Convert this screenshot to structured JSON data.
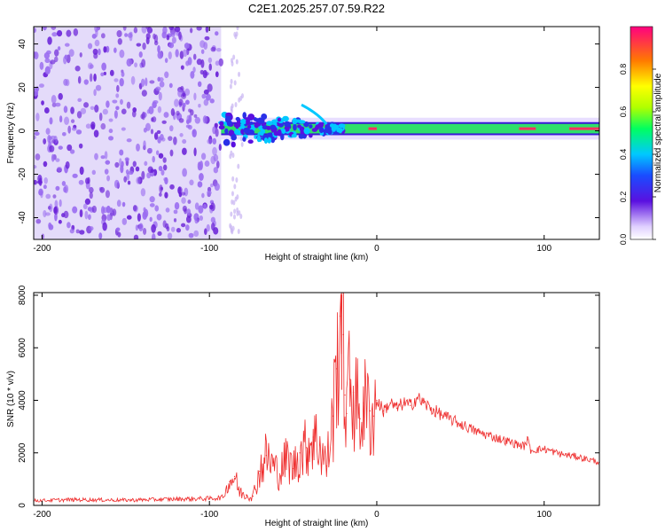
{
  "title": "C2E1.2025.257.07.59.R22",
  "colors": {
    "background": "#ffffff",
    "axis": "#000000",
    "snr_line": "#ee2a2a",
    "spec_bg": "#cdbdf5",
    "spec_dot": "#6a22d8",
    "spec_band": "#2fdf6a"
  },
  "chart_data": [
    {
      "type": "heatmap",
      "title": "C2E1.2025.257.07.59.R22",
      "xlabel": "Height of straight line (km)",
      "ylabel": "Frequency (Hz)",
      "xlim": [
        -205,
        133
      ],
      "ylim": [
        -50,
        48
      ],
      "x_ticks": [
        -200,
        -100,
        0,
        100
      ],
      "x_tick_labels": [
        "-200",
        "-100",
        "0",
        "100"
      ],
      "y_ticks": [
        -40,
        -20,
        0,
        20,
        40
      ],
      "y_tick_labels": [
        "-40",
        "-20",
        "0",
        "20",
        "40"
      ],
      "noise_region_km": [
        -205,
        -93
      ],
      "band_center_hz": 1,
      "band_halfwidth_hz": 3,
      "band_start_km": -93,
      "colorbar": {
        "label": "Normalized spectral amplitude",
        "range": [
          0.0,
          1.0
        ],
        "ticks": [
          0.0,
          0.2,
          0.4,
          0.6,
          0.8
        ],
        "tick_labels": [
          "0.0",
          "0.2",
          "0.4",
          "0.6",
          "0.8"
        ],
        "stops": [
          {
            "v": 0.0,
            "color": "#ffffff"
          },
          {
            "v": 0.06,
            "color": "#e0d0ff"
          },
          {
            "v": 0.18,
            "color": "#5a10e0"
          },
          {
            "v": 0.3,
            "color": "#1a4cff"
          },
          {
            "v": 0.4,
            "color": "#00c8ff"
          },
          {
            "v": 0.52,
            "color": "#00ff60"
          },
          {
            "v": 0.62,
            "color": "#b0ff00"
          },
          {
            "v": 0.72,
            "color": "#ffff00"
          },
          {
            "v": 0.84,
            "color": "#ff7a00"
          },
          {
            "v": 1.0,
            "color": "#ff0080"
          }
        ]
      }
    },
    {
      "type": "line",
      "xlabel": "Height of straight line (km)",
      "ylabel": "SNR (10 * v/v)",
      "xlim": [
        -205,
        133
      ],
      "ylim": [
        0,
        8100
      ],
      "x_ticks": [
        -200,
        -100,
        0,
        100
      ],
      "x_tick_labels": [
        "-200",
        "-100",
        "0",
        "100"
      ],
      "y_ticks": [
        0,
        2000,
        4000,
        6000,
        8000
      ],
      "y_tick_labels": [
        "0",
        "2000",
        "4000",
        "6000",
        "8000"
      ],
      "series": [
        {
          "name": "SNR",
          "color": "#ee2a2a",
          "x": [
            -205,
            -180,
            -150,
            -120,
            -100,
            -92,
            -88,
            -85,
            -82,
            -78,
            -74,
            -70,
            -66,
            -62,
            -58,
            -54,
            -50,
            -46,
            -42,
            -38,
            -34,
            -30,
            -26,
            -24,
            -22,
            -21,
            -20,
            -19,
            -18,
            -16,
            -14,
            -12,
            -10,
            -8,
            -6,
            -4,
            -2,
            0,
            4,
            8,
            12,
            16,
            20,
            24,
            28,
            32,
            40,
            50,
            60,
            70,
            80,
            88,
            90,
            92,
            100,
            110,
            120,
            133
          ],
          "y": [
            180,
            220,
            200,
            240,
            260,
            300,
            900,
            1100,
            500,
            400,
            350,
            1300,
            1900,
            1500,
            1200,
            1800,
            1400,
            2000,
            2200,
            2600,
            2300,
            1500,
            3400,
            5200,
            7200,
            8000,
            6500,
            4200,
            3500,
            4800,
            4300,
            3800,
            3300,
            3900,
            3600,
            3600,
            3400,
            4000,
            3600,
            3900,
            3700,
            3900,
            3800,
            4100,
            3900,
            3700,
            3400,
            3100,
            2800,
            2600,
            2400,
            2250,
            2500,
            2100,
            2150,
            1950,
            1850,
            1650
          ]
        }
      ],
      "peak_annotations": [
        {
          "x": -21,
          "y": 8000
        }
      ]
    }
  ]
}
